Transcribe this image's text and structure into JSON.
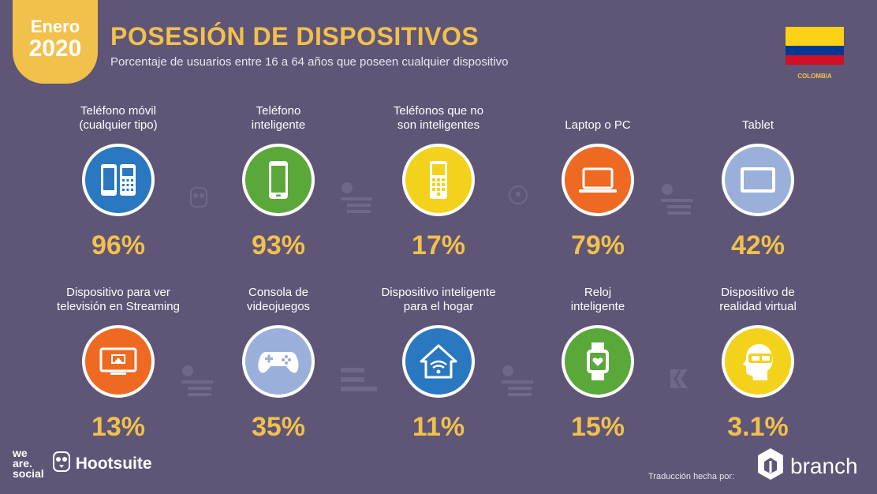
{
  "header": {
    "month": "Enero",
    "year": "2020",
    "title": "POSESIÓN DE DISPOSITIVOS",
    "subtitle": "Porcentaje de usuarios entre 16 a 64 años que poseen cualquier dispositivo",
    "country": "COLOMBIA"
  },
  "devices": [
    {
      "label1": "Teléfono móvil",
      "label2": "(cualquier tipo)",
      "value": "96%",
      "icon": "mobile-phones-icon",
      "color": "#2a78c0"
    },
    {
      "label1": "Teléfono",
      "label2": "inteligente",
      "value": "93%",
      "icon": "smartphone-icon",
      "color": "#5aa83a"
    },
    {
      "label1": "Teléfonos que no",
      "label2": "son inteligentes",
      "value": "17%",
      "icon": "feature-phone-icon",
      "color": "#f2d21b"
    },
    {
      "label1": "",
      "label2": "Laptop o PC",
      "value": "79%",
      "icon": "laptop-icon",
      "color": "#ee6a23"
    },
    {
      "label1": "",
      "label2": "Tablet",
      "value": "42%",
      "icon": "tablet-icon",
      "color": "#9ab0da"
    },
    {
      "label1": "Dispositivo para ver",
      "label2": "televisión en Streaming",
      "value": "13%",
      "icon": "streaming-tv-icon",
      "color": "#ee6a23"
    },
    {
      "label1": "Consola de",
      "label2": "videojuegos",
      "value": "35%",
      "icon": "gamepad-icon",
      "color": "#9ab0da"
    },
    {
      "label1": "Dispositivo inteligente",
      "label2": "para el hogar",
      "value": "11%",
      "icon": "smart-home-icon",
      "color": "#2a78c0"
    },
    {
      "label1": "Reloj",
      "label2": "inteligente",
      "value": "15%",
      "icon": "smartwatch-icon",
      "color": "#5aa83a"
    },
    {
      "label1": "Dispositivo de",
      "label2": "realidad virtual",
      "value": "3.1%",
      "icon": "vr-headset-icon",
      "color": "#f2d21b"
    }
  ],
  "footer": {
    "wearesocial_1": "we",
    "wearesocial_2": "are.",
    "wearesocial_3": "social",
    "hootsuite": "Hootsuite",
    "translation": "Traducción hecha por:",
    "branch": "branch"
  }
}
